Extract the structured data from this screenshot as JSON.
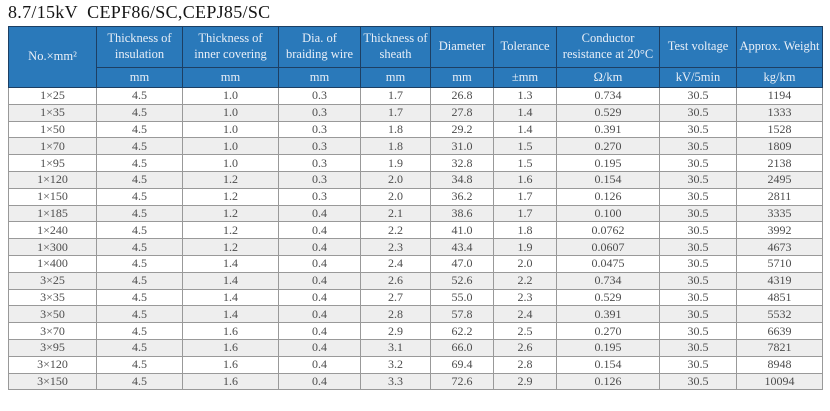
{
  "title": "8.7/15kV  CEPF86/SC,CEPJ85/SC",
  "colors": {
    "header_blue": "#2A79BA",
    "header_text": "#E9EFF7",
    "header_divider_dark": "#1D3F63",
    "header_divider_light": "#C5D9EC",
    "grid_line": "#999999",
    "stripe_gray": "#EEEEEE",
    "body_text": "#4D4D4D",
    "title_text": "#151515"
  },
  "table": {
    "header": {
      "col0": "No.×mm²",
      "cols": [
        {
          "label": "Thickness of insulation",
          "unit": "mm"
        },
        {
          "label": "Thickness of inner covering",
          "unit": "mm"
        },
        {
          "label": "Dia. of braiding wire",
          "unit": "mm"
        },
        {
          "label": "Thickness of sheath",
          "unit": "mm"
        },
        {
          "label": "Diameter",
          "unit": "mm"
        },
        {
          "label": "Tolerance",
          "unit": "±mm"
        },
        {
          "label": "Conductor resistance at 20°C",
          "unit": "Ω/km"
        },
        {
          "label": "Test voltage",
          "unit": "kV/5min"
        },
        {
          "label": "Approx. Weight",
          "unit": "kg/km"
        }
      ]
    },
    "rows": [
      [
        "1×25",
        "4.5",
        "1.0",
        "0.3",
        "1.7",
        "26.8",
        "1.3",
        "0.734",
        "30.5",
        "1194"
      ],
      [
        "1×35",
        "4.5",
        "1.0",
        "0.3",
        "1.7",
        "27.8",
        "1.4",
        "0.529",
        "30.5",
        "1333"
      ],
      [
        "1×50",
        "4.5",
        "1.0",
        "0.3",
        "1.8",
        "29.2",
        "1.4",
        "0.391",
        "30.5",
        "1528"
      ],
      [
        "1×70",
        "4.5",
        "1.0",
        "0.3",
        "1.8",
        "31.0",
        "1.5",
        "0.270",
        "30.5",
        "1809"
      ],
      [
        "1×95",
        "4.5",
        "1.0",
        "0.3",
        "1.9",
        "32.8",
        "1.5",
        "0.195",
        "30.5",
        "2138"
      ],
      [
        "1×120",
        "4.5",
        "1.2",
        "0.3",
        "2.0",
        "34.8",
        "1.6",
        "0.154",
        "30.5",
        "2495"
      ],
      [
        "1×150",
        "4.5",
        "1.2",
        "0.3",
        "2.0",
        "36.2",
        "1.7",
        "0.126",
        "30.5",
        "2811"
      ],
      [
        "1×185",
        "4.5",
        "1.2",
        "0.4",
        "2.1",
        "38.6",
        "1.7",
        "0.100",
        "30.5",
        "3335"
      ],
      [
        "1×240",
        "4.5",
        "1.2",
        "0.4",
        "2.2",
        "41.0",
        "1.8",
        "0.0762",
        "30.5",
        "3992"
      ],
      [
        "1×300",
        "4.5",
        "1.2",
        "0.4",
        "2.3",
        "43.4",
        "1.9",
        "0.0607",
        "30.5",
        "4673"
      ],
      [
        "1×400",
        "4.5",
        "1.4",
        "0.4",
        "2.4",
        "47.0",
        "2.0",
        "0.0475",
        "30.5",
        "5710"
      ],
      [
        "3×25",
        "4.5",
        "1.4",
        "0.4",
        "2.6",
        "52.6",
        "2.2",
        "0.734",
        "30.5",
        "4319"
      ],
      [
        "3×35",
        "4.5",
        "1.4",
        "0.4",
        "2.7",
        "55.0",
        "2.3",
        "0.529",
        "30.5",
        "4851"
      ],
      [
        "3×50",
        "4.5",
        "1.4",
        "0.4",
        "2.8",
        "57.8",
        "2.4",
        "0.391",
        "30.5",
        "5532"
      ],
      [
        "3×70",
        "4.5",
        "1.6",
        "0.4",
        "2.9",
        "62.2",
        "2.5",
        "0.270",
        "30.5",
        "6639"
      ],
      [
        "3×95",
        "4.5",
        "1.6",
        "0.4",
        "3.1",
        "66.0",
        "2.6",
        "0.195",
        "30.5",
        "7821"
      ],
      [
        "3×120",
        "4.5",
        "1.6",
        "0.4",
        "3.2",
        "69.4",
        "2.8",
        "0.154",
        "30.5",
        "8948"
      ],
      [
        "3×150",
        "4.5",
        "1.6",
        "0.4",
        "3.3",
        "72.6",
        "2.9",
        "0.126",
        "30.5",
        "10094"
      ]
    ]
  }
}
